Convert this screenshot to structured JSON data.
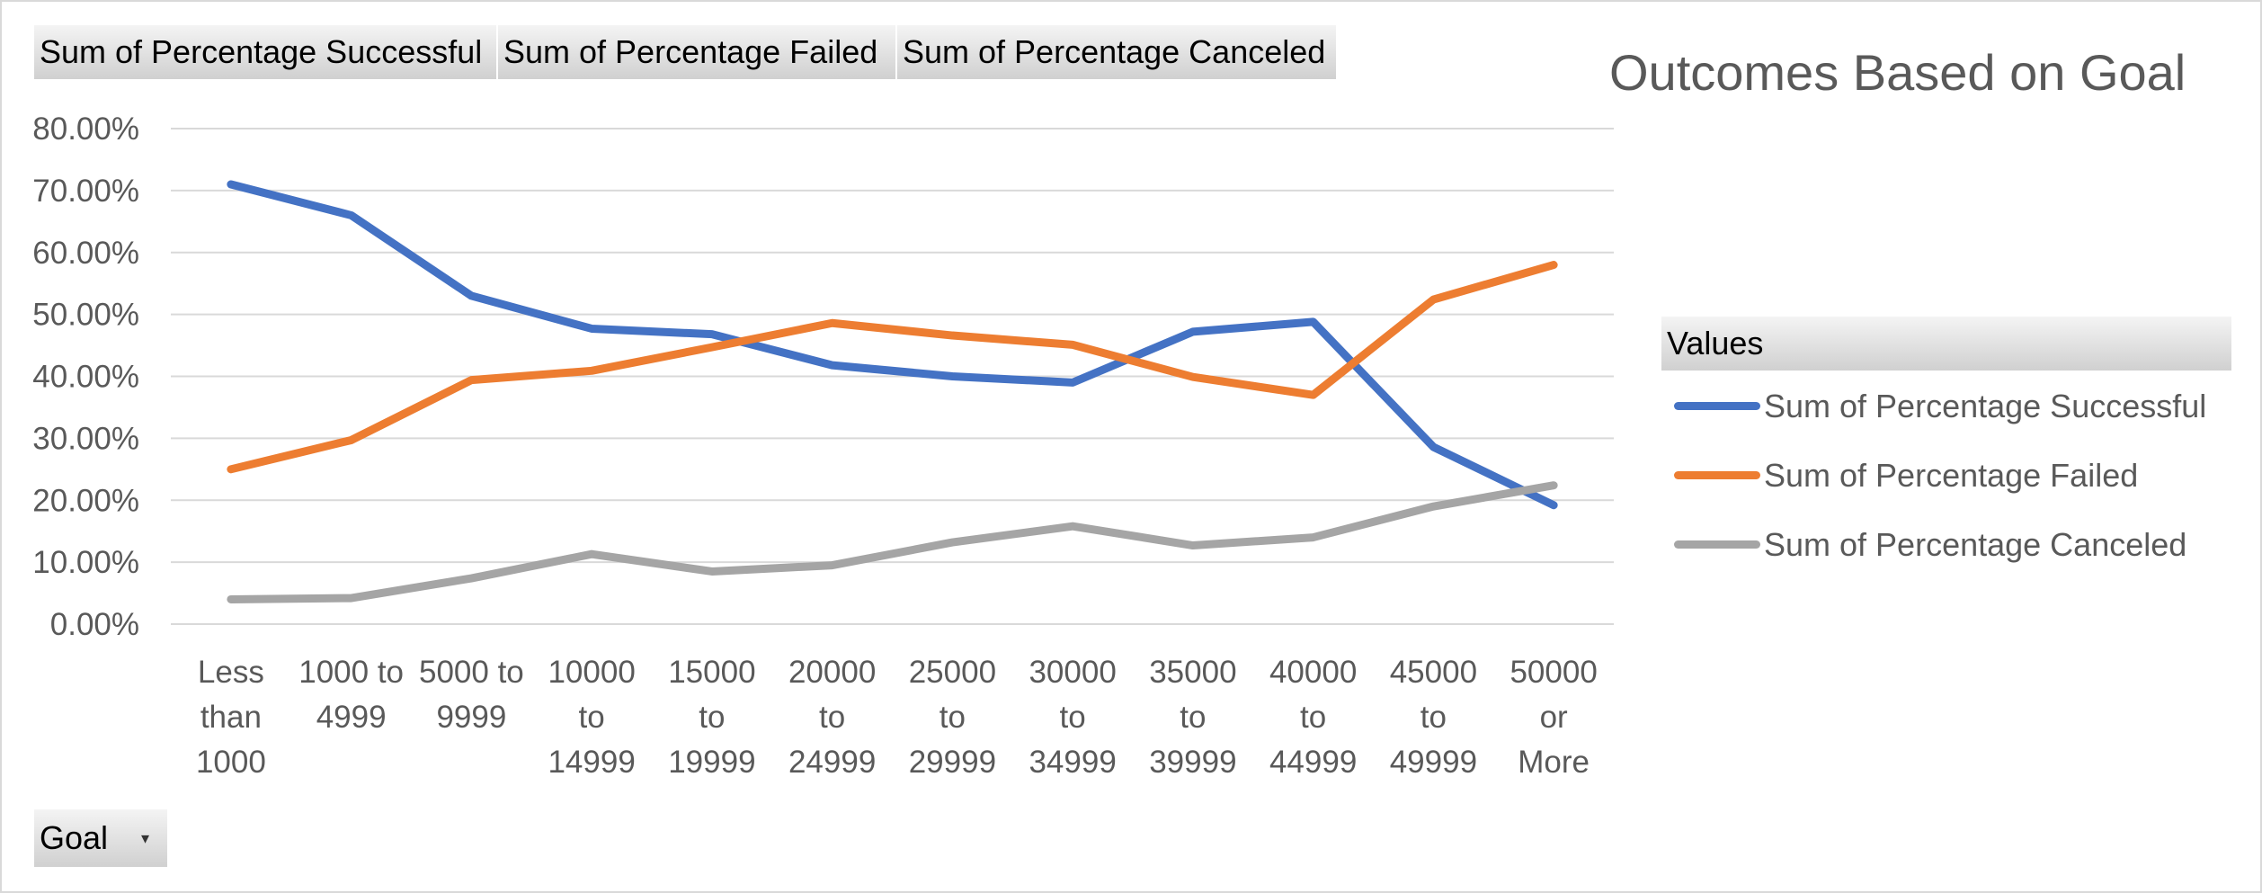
{
  "field_buttons": {
    "successful": "Sum of Percentage  Successful",
    "failed": "Sum of Percentage  Failed",
    "canceled": "Sum of Percentage  Canceled"
  },
  "filter_button": {
    "label": "Goal",
    "arrow_icon": "dropdown-arrow-icon"
  },
  "legend": {
    "header": "Values"
  },
  "chart_data": {
    "type": "line",
    "title": "Outcomes Based on Goal",
    "xlabel": "",
    "ylabel": "",
    "ylim": [
      0,
      0.8
    ],
    "y_ticks": [
      "0.00%",
      "10.00%",
      "20.00%",
      "30.00%",
      "40.00%",
      "50.00%",
      "60.00%",
      "70.00%",
      "80.00%"
    ],
    "grid": true,
    "legend_position": "right",
    "categories": [
      [
        "Less",
        "than",
        "1000"
      ],
      [
        "1000 to",
        "4999"
      ],
      [
        "5000 to",
        "9999"
      ],
      [
        "10000",
        "to",
        "14999"
      ],
      [
        "15000",
        "to",
        "19999"
      ],
      [
        "20000",
        "to",
        "24999"
      ],
      [
        "25000",
        "to",
        "29999"
      ],
      [
        "30000",
        "to",
        "34999"
      ],
      [
        "35000",
        "to",
        "39999"
      ],
      [
        "40000",
        "to",
        "44999"
      ],
      [
        "45000",
        "to",
        "49999"
      ],
      [
        "50000",
        "or",
        "More"
      ]
    ],
    "series": [
      {
        "name": "Sum of Percentage Successful",
        "color": "#4472c4",
        "values": [
          0.71,
          0.66,
          0.53,
          0.477,
          0.468,
          0.418,
          0.4,
          0.39,
          0.472,
          0.488,
          0.286,
          0.192
        ]
      },
      {
        "name": "Sum of Percentage Failed",
        "color": "#ed7d31",
        "values": [
          0.25,
          0.297,
          0.394,
          0.409,
          0.447,
          0.486,
          0.466,
          0.451,
          0.399,
          0.37,
          0.524,
          0.58
        ]
      },
      {
        "name": "Sum of Percentage Canceled",
        "color": "#a5a5a5",
        "values": [
          0.04,
          0.042,
          0.074,
          0.113,
          0.085,
          0.095,
          0.132,
          0.158,
          0.127,
          0.14,
          0.19,
          0.224
        ]
      }
    ]
  }
}
